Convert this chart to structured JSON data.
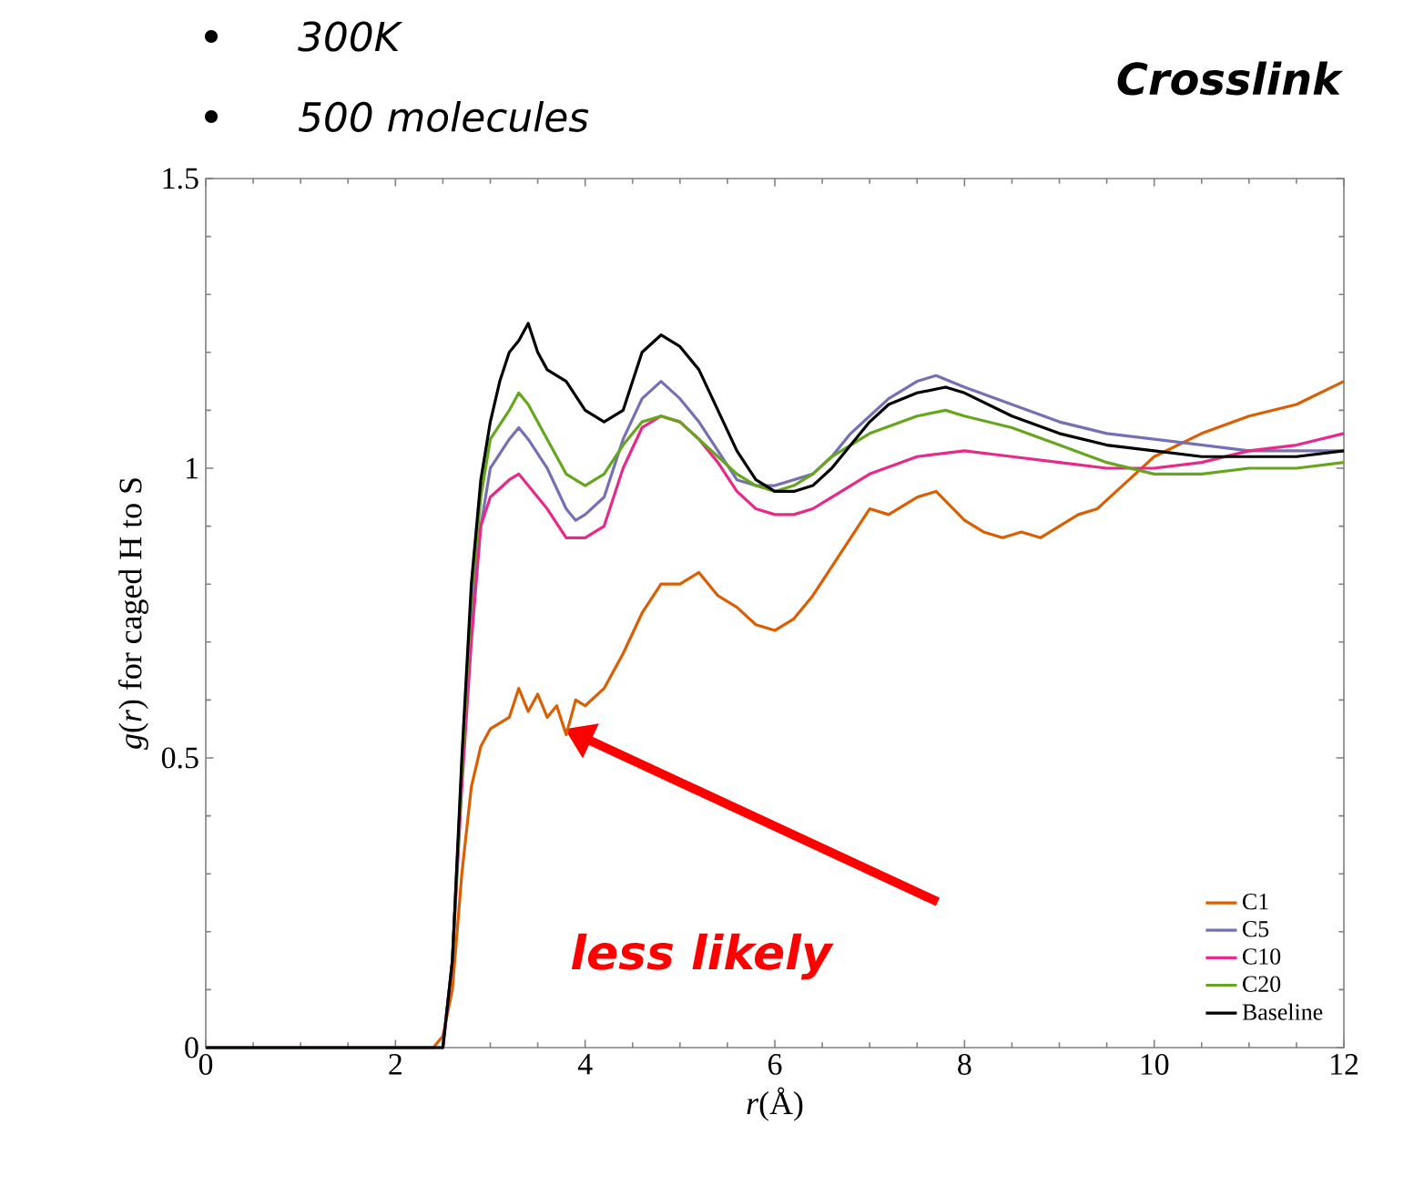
{
  "chart_data": {
    "type": "line",
    "title": "Crosslink",
    "xlabel": "*r*(Å)",
    "ylabel": "*g*(*r*) for caged H to S",
    "annotations": [
      "300K",
      "500 molecules",
      "less likely"
    ],
    "xlim": [
      0,
      12
    ],
    "ylim": [
      0,
      1.5
    ],
    "xticks": [
      0,
      2,
      4,
      6,
      8,
      10,
      12
    ],
    "yticks": [
      0,
      0.5,
      1,
      1.5
    ],
    "grid": false,
    "legend": "bottom right",
    "marker": "none",
    "line_style": "solid",
    "series": [
      {
        "name": "C1",
        "color": "#d95f02",
        "x": [
          0,
          2.4,
          2.5,
          2.6,
          2.7,
          2.8,
          2.9,
          3.0,
          3.2,
          3.3,
          3.4,
          3.5,
          3.6,
          3.7,
          3.8,
          3.9,
          4.0,
          4.2,
          4.4,
          4.6,
          4.8,
          5.0,
          5.2,
          5.4,
          5.6,
          5.8,
          6.0,
          6.2,
          6.4,
          6.6,
          6.8,
          7.0,
          7.2,
          7.5,
          7.7,
          8.0,
          8.2,
          8.4,
          8.6,
          8.8,
          9.0,
          9.2,
          9.4,
          9.6,
          9.8,
          10.0,
          10.5,
          11.0,
          11.5,
          12.0
        ],
        "values": [
          0,
          0,
          0.02,
          0.1,
          0.3,
          0.45,
          0.52,
          0.55,
          0.57,
          0.62,
          0.58,
          0.61,
          0.57,
          0.59,
          0.54,
          0.6,
          0.59,
          0.62,
          0.68,
          0.75,
          0.8,
          0.8,
          0.82,
          0.78,
          0.76,
          0.73,
          0.72,
          0.74,
          0.78,
          0.83,
          0.88,
          0.93,
          0.92,
          0.95,
          0.96,
          0.91,
          0.89,
          0.88,
          0.89,
          0.88,
          0.9,
          0.92,
          0.93,
          0.96,
          0.99,
          1.02,
          1.06,
          1.09,
          1.11,
          1.15
        ]
      },
      {
        "name": "C5",
        "color": "#7570b3",
        "x": [
          0,
          2.4,
          2.5,
          2.6,
          2.7,
          2.8,
          2.9,
          3.0,
          3.2,
          3.3,
          3.4,
          3.6,
          3.8,
          3.9,
          4.0,
          4.2,
          4.4,
          4.6,
          4.8,
          5.0,
          5.2,
          5.4,
          5.6,
          5.8,
          6.0,
          6.2,
          6.4,
          6.6,
          6.8,
          7.0,
          7.2,
          7.5,
          7.7,
          8.0,
          8.5,
          9.0,
          9.5,
          10.0,
          10.5,
          11.0,
          11.5,
          12.0
        ],
        "values": [
          0,
          0,
          0,
          0.15,
          0.48,
          0.75,
          0.9,
          1.0,
          1.05,
          1.07,
          1.05,
          1.0,
          0.93,
          0.91,
          0.92,
          0.95,
          1.05,
          1.12,
          1.15,
          1.12,
          1.08,
          1.03,
          0.98,
          0.97,
          0.97,
          0.98,
          0.99,
          1.02,
          1.06,
          1.09,
          1.12,
          1.15,
          1.16,
          1.14,
          1.11,
          1.08,
          1.06,
          1.05,
          1.04,
          1.03,
          1.03,
          1.03
        ]
      },
      {
        "name": "C10",
        "color": "#e7298a",
        "x": [
          2.5,
          2.6,
          2.7,
          2.8,
          2.9,
          3.0,
          3.2,
          3.3,
          3.4,
          3.6,
          3.8,
          4.0,
          4.2,
          4.4,
          4.6,
          4.8,
          5.0,
          5.2,
          5.4,
          5.6,
          5.8,
          6.0,
          6.2,
          6.4,
          6.6,
          6.8,
          7.0,
          7.5,
          8.0,
          8.5,
          9.0,
          9.5,
          10.0,
          10.5,
          11.0,
          11.5,
          12.0
        ],
        "values": [
          0,
          0.15,
          0.45,
          0.7,
          0.9,
          0.95,
          0.98,
          0.99,
          0.97,
          0.93,
          0.88,
          0.88,
          0.9,
          1.0,
          1.07,
          1.09,
          1.08,
          1.05,
          1.01,
          0.96,
          0.93,
          0.92,
          0.92,
          0.93,
          0.95,
          0.97,
          0.99,
          1.02,
          1.03,
          1.02,
          1.01,
          1.0,
          1.0,
          1.01,
          1.03,
          1.04,
          1.06
        ]
      },
      {
        "name": "C20",
        "color": "#66a61e",
        "x": [
          2.6,
          2.7,
          2.8,
          2.9,
          3.0,
          3.2,
          3.3,
          3.4,
          3.6,
          3.8,
          4.0,
          4.2,
          4.4,
          4.6,
          4.8,
          5.0,
          5.2,
          5.4,
          5.6,
          5.8,
          6.0,
          6.2,
          6.4,
          6.6,
          6.8,
          7.0,
          7.5,
          7.8,
          8.0,
          8.5,
          9.0,
          9.5,
          10.0,
          10.5,
          11.0,
          11.5,
          12.0
        ],
        "values": [
          0.15,
          0.48,
          0.78,
          0.95,
          1.05,
          1.1,
          1.13,
          1.11,
          1.05,
          0.99,
          0.97,
          0.99,
          1.04,
          1.08,
          1.09,
          1.08,
          1.05,
          1.02,
          0.99,
          0.97,
          0.96,
          0.97,
          0.99,
          1.02,
          1.04,
          1.06,
          1.09,
          1.1,
          1.09,
          1.07,
          1.04,
          1.01,
          0.99,
          0.99,
          1.0,
          1.0,
          1.01
        ]
      },
      {
        "name": "Baseline",
        "color": "#000000",
        "x": [
          0,
          2.4,
          2.5,
          2.6,
          2.7,
          2.8,
          2.9,
          3.0,
          3.1,
          3.2,
          3.3,
          3.4,
          3.5,
          3.6,
          3.8,
          4.0,
          4.2,
          4.4,
          4.6,
          4.8,
          5.0,
          5.2,
          5.4,
          5.6,
          5.8,
          6.0,
          6.2,
          6.4,
          6.6,
          6.8,
          7.0,
          7.2,
          7.5,
          7.8,
          8.0,
          8.5,
          9.0,
          9.5,
          10.0,
          10.5,
          11.0,
          11.5,
          12.0
        ],
        "values": [
          0,
          0,
          0,
          0.15,
          0.5,
          0.8,
          0.98,
          1.08,
          1.15,
          1.2,
          1.22,
          1.25,
          1.2,
          1.17,
          1.15,
          1.1,
          1.08,
          1.1,
          1.2,
          1.23,
          1.21,
          1.17,
          1.1,
          1.03,
          0.98,
          0.96,
          0.96,
          0.97,
          1.0,
          1.04,
          1.08,
          1.11,
          1.13,
          1.14,
          1.13,
          1.09,
          1.06,
          1.04,
          1.03,
          1.02,
          1.02,
          1.02,
          1.03
        ]
      }
    ]
  }
}
